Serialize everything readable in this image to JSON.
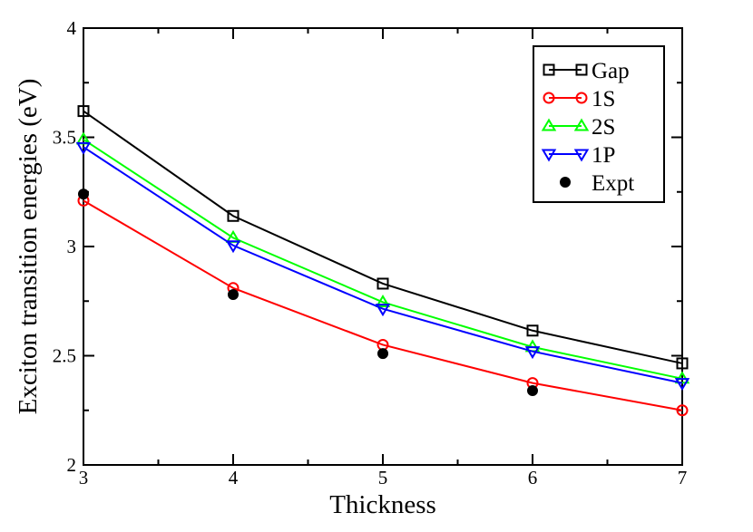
{
  "chart_data": {
    "type": "line",
    "title": "",
    "xlabel": "Thickness",
    "ylabel": "Exciton transition energies (eV)",
    "xlim": [
      3,
      7
    ],
    "ylim": [
      2,
      4
    ],
    "xticks": [
      3,
      4,
      5,
      6,
      7
    ],
    "xtick_labels": [
      "3",
      "4",
      "5",
      "6",
      "7"
    ],
    "yticks": [
      2,
      2.5,
      3,
      3.5,
      4
    ],
    "ytick_labels": [
      "2",
      "2.5",
      "3",
      "3.5",
      "4"
    ],
    "grid": false,
    "legend_position": "top-right",
    "series": [
      {
        "name": "Gap",
        "color": "#000000",
        "marker": "square",
        "line": true,
        "x": [
          3,
          4,
          5,
          6,
          7
        ],
        "y": [
          3.62,
          3.14,
          2.83,
          2.615,
          2.465
        ]
      },
      {
        "name": "1S",
        "color": "#ff0000",
        "marker": "circle",
        "line": true,
        "x": [
          3,
          4,
          5,
          6,
          7
        ],
        "y": [
          3.21,
          2.81,
          2.55,
          2.375,
          2.25
        ]
      },
      {
        "name": "2S",
        "color": "#00ff00",
        "marker": "triangle-up",
        "line": true,
        "x": [
          3,
          4,
          5,
          6,
          7
        ],
        "y": [
          3.49,
          3.04,
          2.745,
          2.54,
          2.395
        ]
      },
      {
        "name": "1P",
        "color": "#0000ff",
        "marker": "triangle-down",
        "line": true,
        "x": [
          3,
          4,
          5,
          6,
          7
        ],
        "y": [
          3.455,
          3.005,
          2.715,
          2.52,
          2.375
        ]
      },
      {
        "name": "Expt",
        "color": "#000000",
        "marker": "filled-circle",
        "line": false,
        "x": [
          3,
          4,
          5,
          6
        ],
        "y": [
          3.24,
          2.78,
          2.51,
          2.34
        ]
      }
    ]
  }
}
